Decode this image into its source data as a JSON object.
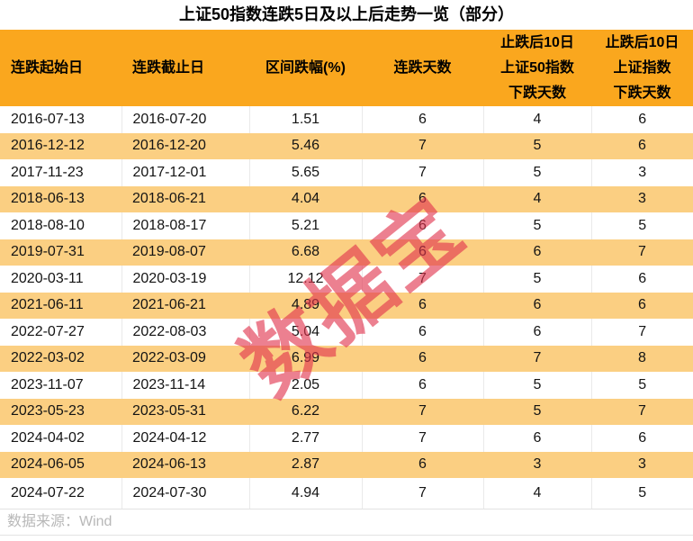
{
  "title": "上证50指数连跌5日及以上后走势一览（部分）",
  "watermark_text": "数据宝",
  "footer": {
    "source": "数据来源：Wind"
  },
  "header_labels": {
    "col1": "连跌起始日",
    "col2": "连跌截止日",
    "col3": "区间跌幅(%)",
    "col4": "连跌天数",
    "col5": "止跌后10日\n上证50指数\n下跌天数",
    "col6": "止跌后10日\n上证指数\n下跌天数"
  },
  "colors": {
    "header_bg": "#FAA71E",
    "alt_row_bg": "#FBCF82",
    "watermark": "#E2334D",
    "footer_text": "#B8B8B8"
  },
  "chart_data": {
    "type": "table",
    "title": "上证50指数连跌5日及以上后走势一览（部分）",
    "columns": [
      "连跌起始日",
      "连跌截止日",
      "区间跌幅(%)",
      "连跌天数",
      "止跌后10日上证50指数下跌天数",
      "止跌后10日上证指数下跌天数"
    ],
    "rows": [
      [
        "2016-07-13",
        "2016-07-20",
        "1.51",
        "6",
        "4",
        "6"
      ],
      [
        "2016-12-12",
        "2016-12-20",
        "5.46",
        "7",
        "5",
        "6"
      ],
      [
        "2017-11-23",
        "2017-12-01",
        "5.65",
        "7",
        "5",
        "3"
      ],
      [
        "2018-06-13",
        "2018-06-21",
        "4.04",
        "6",
        "4",
        "3"
      ],
      [
        "2018-08-10",
        "2018-08-17",
        "5.21",
        "6",
        "5",
        "5"
      ],
      [
        "2019-07-31",
        "2019-08-07",
        "6.68",
        "6",
        "6",
        "7"
      ],
      [
        "2020-03-11",
        "2020-03-19",
        "12.12",
        "7",
        "5",
        "6"
      ],
      [
        "2021-06-11",
        "2021-06-21",
        "4.89",
        "6",
        "6",
        "6"
      ],
      [
        "2022-07-27",
        "2022-08-03",
        "5.04",
        "6",
        "6",
        "7"
      ],
      [
        "2022-03-02",
        "2022-03-09",
        "6.99",
        "6",
        "7",
        "8"
      ],
      [
        "2023-11-07",
        "2023-11-14",
        "2.05",
        "6",
        "5",
        "5"
      ],
      [
        "2023-05-23",
        "2023-05-31",
        "6.22",
        "7",
        "5",
        "7"
      ],
      [
        "2024-04-02",
        "2024-04-12",
        "2.77",
        "7",
        "6",
        "6"
      ],
      [
        "2024-06-05",
        "2024-06-13",
        "2.87",
        "6",
        "3",
        "3"
      ],
      [
        "2024-07-22",
        "2024-07-30",
        "4.94",
        "7",
        "4",
        "5"
      ]
    ]
  }
}
